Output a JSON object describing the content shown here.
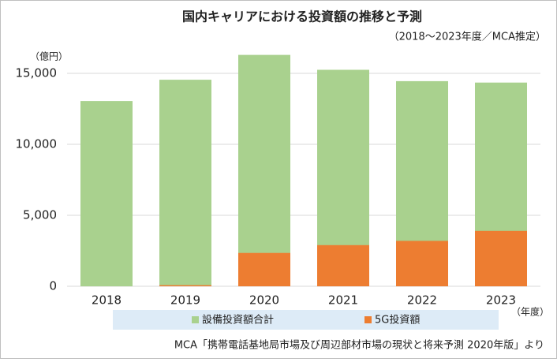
{
  "chart_data": {
    "type": "bar",
    "title": "国内キャリアにおける投資額の推移と予測",
    "subtitle": "（2018～2023年度／MCA推定）",
    "y_unit": "（億円）",
    "x_unit": "（年度）",
    "source": "MCA「携帯電話基地局市場及び周辺部材市場の現状と将来予測 2020年版」より",
    "categories": [
      "2018",
      "2019",
      "2020",
      "2021",
      "2022",
      "2023"
    ],
    "overlap": true,
    "series": [
      {
        "name": "設備投資額合計",
        "color": "#a9d18e",
        "values": [
          13050,
          14550,
          16300,
          15250,
          14450,
          14350
        ]
      },
      {
        "name": "5G投資額",
        "color": "#ed7d31",
        "values": [
          0,
          80,
          2350,
          2900,
          3200,
          3900
        ]
      }
    ],
    "ylim": [
      0,
      17000
    ],
    "yticks": [
      0,
      {
        "value": 5000,
        "label": "5,000"
      },
      {
        "value": 10000,
        "label": "10,000"
      },
      {
        "value": 15000,
        "label": "15,000"
      }
    ],
    "grid": true
  }
}
